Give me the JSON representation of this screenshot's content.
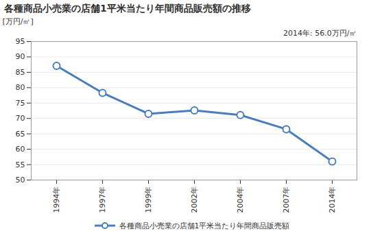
{
  "chart_data": {
    "type": "line",
    "title": "各種商品小売業の店舗1平米当たり年間商品販売額の推移",
    "y_label": "[万円/㎡]",
    "annotation": "2014年: 56.0万円/㎡",
    "categories": [
      "1994年",
      "1997年",
      "1999年",
      "2002年",
      "2004年",
      "2007年",
      "2014年"
    ],
    "series": [
      {
        "name": "各種商品小売業の店舗1平米当たり年間商品販売額",
        "color": "#4a7ebb",
        "marker": "circle",
        "values": [
          87.1,
          78.3,
          71.5,
          72.6,
          71.1,
          66.5,
          56.0
        ]
      }
    ],
    "ylim": [
      50,
      95
    ],
    "yticks": [
      50,
      55,
      60,
      65,
      70,
      75,
      80,
      85,
      90,
      95
    ],
    "grid": true,
    "legend": "bottom"
  }
}
